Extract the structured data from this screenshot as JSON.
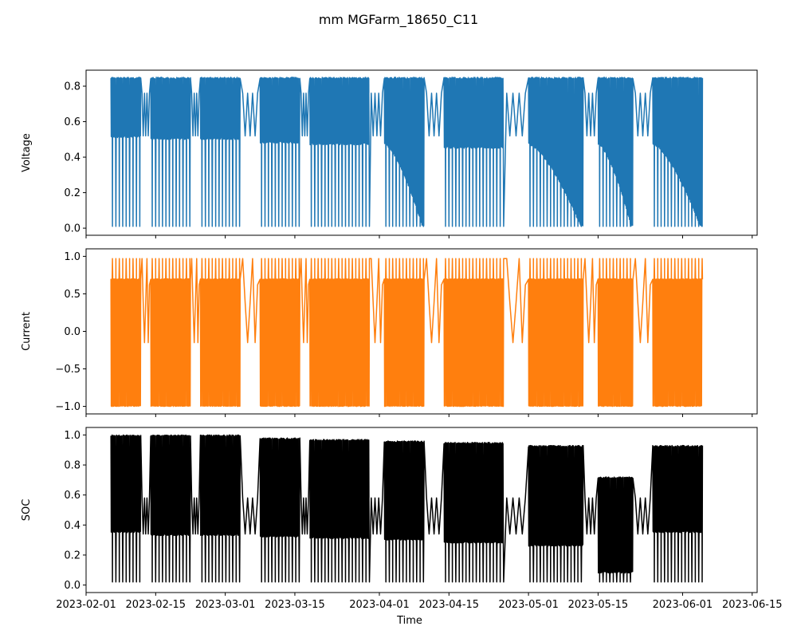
{
  "chart_data": {
    "type": "line",
    "title": "mm MGFarm_18650_C11",
    "xlabel": "Time",
    "x_range": [
      "2023-02-01",
      "2023-06-16"
    ],
    "x_ticks": [
      "2023-02-01",
      "2023-02-15",
      "2023-03-01",
      "2023-03-15",
      "2023-04-01",
      "2023-04-15",
      "2023-05-01",
      "2023-05-15",
      "2023-06-01",
      "2023-06-15"
    ],
    "legend": "none",
    "grid": false,
    "shared_x": true,
    "t_start": "2023-02-06",
    "t_end": "2023-06-10",
    "segments": [
      {
        "start": "2023-02-06",
        "end": "2023-02-12"
      },
      {
        "start": "2023-02-14",
        "end": "2023-02-22"
      },
      {
        "start": "2023-02-24",
        "end": "2023-03-04"
      },
      {
        "start": "2023-03-08",
        "end": "2023-03-16"
      },
      {
        "start": "2023-03-18",
        "end": "2023-03-30"
      },
      {
        "start": "2023-04-02",
        "end": "2023-04-10"
      },
      {
        "start": "2023-04-14",
        "end": "2023-04-26"
      },
      {
        "start": "2023-05-01",
        "end": "2023-05-12"
      },
      {
        "start": "2023-05-15",
        "end": "2023-05-22"
      },
      {
        "start": "2023-05-26",
        "end": "2023-06-05"
      }
    ],
    "subplots": [
      {
        "ylabel": "Voltage",
        "color": "#1f77b4",
        "ylim": [
          -0.04,
          0.89
        ],
        "yticks": [
          0.0,
          0.2,
          0.4,
          0.6,
          0.8
        ],
        "tick_labels": [
          "0.0",
          "0.2",
          "0.4",
          "0.6",
          "0.8"
        ],
        "upper": 0.85,
        "lower": [
          0.51,
          0.5,
          0.5,
          0.48,
          0.47,
          0.0,
          0.45,
          0.0,
          0.0,
          0.0
        ],
        "gap_value": 0.64,
        "spike_min": 0.01
      },
      {
        "ylabel": "Current",
        "color": "#ff7f0e",
        "ylim": [
          -1.1,
          1.1
        ],
        "yticks": [
          -1.0,
          -0.5,
          0.0,
          0.5,
          1.0
        ],
        "tick_labels": [
          "−1.0",
          "−0.5",
          "0.0",
          "0.5",
          "1.0"
        ],
        "upper": 0.7,
        "lower": [
          -1.0,
          -1.0,
          -1.0,
          -1.0,
          -1.0,
          -1.0,
          -1.0,
          -1.0,
          -1.0,
          -1.0
        ],
        "gap_value": 0.5,
        "spike_max": 0.97,
        "dip_value": -0.15
      },
      {
        "ylabel": "SOC",
        "color": "#000000",
        "ylim": [
          -0.05,
          1.05
        ],
        "yticks": [
          0.0,
          0.2,
          0.4,
          0.6,
          0.8,
          1.0
        ],
        "tick_labels": [
          "0.0",
          "0.2",
          "0.4",
          "0.6",
          "0.8",
          "1.0"
        ],
        "upper": 1.0,
        "lower": [
          0.35,
          0.33,
          0.33,
          0.32,
          0.31,
          0.3,
          0.28,
          0.26,
          0.08,
          0.35
        ],
        "upper_series": [
          1.0,
          1.0,
          1.0,
          0.98,
          0.97,
          0.96,
          0.95,
          0.93,
          0.72,
          0.93
        ],
        "gap_value": 0.46,
        "spike_min": 0.02
      }
    ]
  }
}
